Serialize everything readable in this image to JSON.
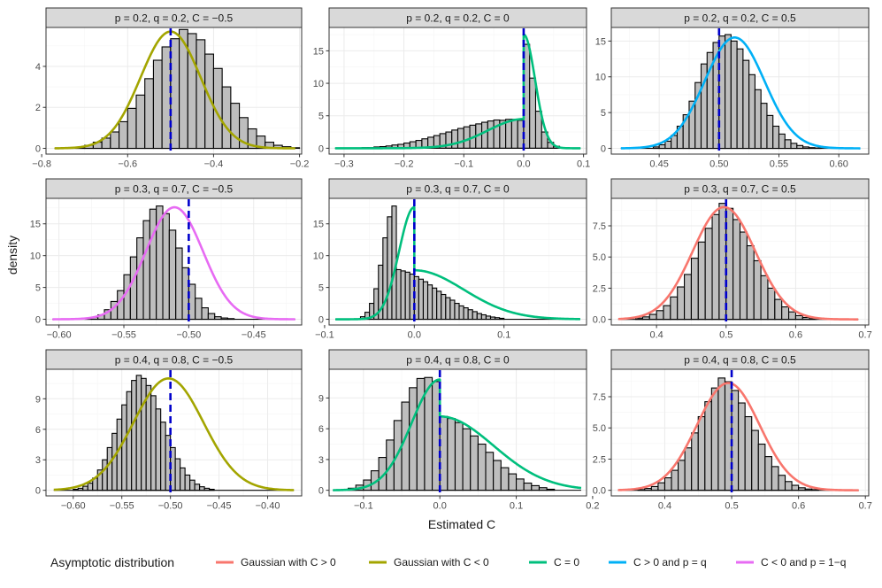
{
  "chart_data": {
    "type": "histogram+density",
    "layout": "3x3 facets, free scales",
    "xlabel": "Estimated C",
    "ylabel": "density",
    "legend": {
      "title": "Asymptotic distribution",
      "position": "bottom",
      "entries": [
        {
          "key": "gpos",
          "label": "Gaussian with C > 0",
          "color": "#F8766D"
        },
        {
          "key": "gneg",
          "label": "Gaussian with C < 0",
          "color": "#A3A500"
        },
        {
          "key": "zero",
          "label": "C = 0",
          "color": "#00BF7D"
        },
        {
          "key": "peq",
          "label": "C > 0 and p = q",
          "color": "#00B0F6"
        },
        {
          "key": "p1q",
          "label": "C < 0 and p = 1−q",
          "color": "#E76BF3"
        }
      ]
    },
    "panels": [
      {
        "strip": "p = 0.2, q = 0.2, C = −0.5",
        "curve": "gneg",
        "vline": -0.5,
        "xlim": [
          -0.79,
          -0.195
        ],
        "ylim": [
          -0.28,
          5.9
        ],
        "xticks": [
          {
            "v": -0.8,
            "l": "−0.8"
          },
          {
            "v": -0.6,
            "l": "−0.6"
          },
          {
            "v": -0.4,
            "l": "−0.4"
          },
          {
            "v": -0.2,
            "l": "−0.2"
          }
        ],
        "yticks": [
          {
            "v": 0,
            "l": "0"
          },
          {
            "v": 2,
            "l": "2"
          },
          {
            "v": 4,
            "l": "4"
          }
        ],
        "hist": {
          "start": -0.72,
          "width": 0.02,
          "values": [
            0.05,
            0.15,
            0.3,
            0.5,
            0.8,
            1.3,
            1.95,
            2.6,
            3.4,
            4.3,
            4.95,
            5.35,
            5.8,
            5.6,
            5.3,
            4.6,
            3.9,
            3.0,
            2.2,
            1.5,
            0.95,
            0.6,
            0.3,
            0.15,
            0.08,
            0.03
          ]
        },
        "dens": {
          "from": -0.77,
          "to": -0.21,
          "mu": -0.5,
          "sd": 0.07,
          "amp": 5.7
        }
      },
      {
        "strip": "p = 0.2, q = 0.2, C = 0",
        "curve": "zero",
        "vline": 0,
        "xlim": [
          -0.325,
          0.105
        ],
        "ylim": [
          -0.9,
          18.6
        ],
        "xticks": [
          {
            "v": -0.3,
            "l": "−0.3"
          },
          {
            "v": -0.2,
            "l": "−0.2"
          },
          {
            "v": -0.1,
            "l": "−0.1"
          },
          {
            "v": 0,
            "l": "0.0"
          },
          {
            "v": 0.1,
            "l": "0.1"
          }
        ],
        "yticks": [
          {
            "v": 0,
            "l": "0"
          },
          {
            "v": 5,
            "l": "5"
          },
          {
            "v": 10,
            "l": "10"
          },
          {
            "v": 15,
            "l": "15"
          }
        ],
        "hist": {
          "start": -0.29,
          "width": 0.01,
          "values": [
            0.05,
            0.05,
            0.1,
            0.1,
            0.2,
            0.25,
            0.35,
            0.5,
            0.6,
            0.8,
            1.0,
            1.2,
            1.45,
            1.7,
            1.95,
            2.25,
            2.5,
            2.8,
            3.05,
            3.3,
            3.55,
            3.75,
            4.0,
            4.2,
            4.35,
            4.3,
            4.45,
            4.45,
            4.3,
            16.0,
            10.8,
            5.7,
            2.5,
            0.9,
            0.3,
            0.1
          ]
        },
        "dens": {
          "split": 0,
          "from": -0.315,
          "to": 0.095,
          "leftSd": 0.06,
          "leftAmp": 4.5,
          "rightSd": 0.019,
          "rightAmp": 17.5
        }
      },
      {
        "strip": "p = 0.2, q = 0.2, C = 0.5",
        "curve": "peq",
        "vline": 0.5,
        "xlim": [
          0.41,
          0.625
        ],
        "ylim": [
          -0.8,
          16.9
        ],
        "xticks": [
          {
            "v": 0.45,
            "l": "0.45"
          },
          {
            "v": 0.5,
            "l": "0.50"
          },
          {
            "v": 0.55,
            "l": "0.55"
          },
          {
            "v": 0.6,
            "l": "0.60"
          }
        ],
        "yticks": [
          {
            "v": 0,
            "l": "0"
          },
          {
            "v": 5,
            "l": "5"
          },
          {
            "v": 10,
            "l": "10"
          },
          {
            "v": 15,
            "l": "15"
          }
        ],
        "hist": {
          "start": 0.445,
          "width": 0.005,
          "values": [
            0.2,
            0.5,
            1.0,
            1.8,
            3.1,
            4.7,
            6.6,
            9.2,
            11.8,
            13.4,
            14.8,
            15.7,
            15.9,
            15.0,
            13.9,
            12.3,
            10.3,
            8.2,
            6.3,
            4.6,
            3.1,
            2.0,
            1.2,
            0.7,
            0.4,
            0.2,
            0.1,
            0.05
          ]
        },
        "dens": {
          "from": 0.418,
          "to": 0.618,
          "mu": 0.513,
          "sd": 0.025,
          "amp": 15.5
        }
      },
      {
        "strip": "p = 0.3, q = 0.7, C = −0.5",
        "curve": "p1q",
        "vline": -0.5,
        "xlim": [
          -0.61,
          -0.413
        ],
        "ylim": [
          -0.9,
          19.0
        ],
        "xticks": [
          {
            "v": -0.6,
            "l": "−0.60"
          },
          {
            "v": -0.55,
            "l": "−0.55"
          },
          {
            "v": -0.5,
            "l": "−0.50"
          },
          {
            "v": -0.45,
            "l": "−0.45"
          }
        ],
        "yticks": [
          {
            "v": 0,
            "l": "0"
          },
          {
            "v": 5,
            "l": "5"
          },
          {
            "v": 10,
            "l": "10"
          },
          {
            "v": 15,
            "l": "15"
          }
        ],
        "hist": {
          "start": -0.58,
          "width": 0.005,
          "values": [
            0.1,
            0.3,
            0.7,
            1.5,
            2.8,
            4.5,
            7.0,
            9.8,
            12.8,
            15.5,
            17.3,
            17.8,
            16.6,
            14.0,
            11.2,
            8.1,
            5.5,
            3.3,
            1.8,
            0.9,
            0.4,
            0.2,
            0.1
          ]
        },
        "dens": {
          "from": -0.605,
          "to": -0.418,
          "mu": -0.511,
          "sd": 0.022,
          "amp": 17.6
        }
      },
      {
        "strip": "p = 0.3, q = 0.7, C = 0",
        "curve": "zero",
        "vline": 0,
        "xlim": [
          -0.095,
          0.192
        ],
        "ylim": [
          -0.9,
          19.0
        ],
        "xticks": [
          {
            "v": -0.1,
            "l": "−0.1"
          },
          {
            "v": 0,
            "l": "0.0"
          },
          {
            "v": 0.1,
            "l": "0.1"
          }
        ],
        "yticks": [
          {
            "v": 0,
            "l": "0"
          },
          {
            "v": 5,
            "l": "5"
          },
          {
            "v": 10,
            "l": "10"
          },
          {
            "v": 15,
            "l": "15"
          }
        ],
        "hist": {
          "start": -0.06,
          "width": 0.005,
          "values": [
            0.4,
            1.1,
            2.5,
            4.8,
            8.5,
            12.8,
            16.1,
            17.8,
            7.8,
            7.6,
            7.4,
            7.1,
            6.7,
            6.3,
            5.9,
            5.4,
            4.9,
            4.4,
            3.9,
            3.4,
            3.0,
            2.5,
            2.1,
            1.8,
            1.5,
            1.2,
            0.9,
            0.7,
            0.5,
            0.35,
            0.25,
            0.15
          ]
        },
        "dens": {
          "split": 0,
          "from": -0.088,
          "to": 0.185,
          "leftSd": 0.017,
          "leftAmp": 17.6,
          "rightSd": 0.055,
          "rightAmp": 7.7
        }
      },
      {
        "strip": "p = 0.3, q = 0.7, C = 0.5",
        "curve": "gpos",
        "vline": 0.5,
        "xlim": [
          0.335,
          0.705
        ],
        "ylim": [
          -0.45,
          9.7
        ],
        "xticks": [
          {
            "v": 0.4,
            "l": "0.4"
          },
          {
            "v": 0.5,
            "l": "0.5"
          },
          {
            "v": 0.6,
            "l": "0.6"
          },
          {
            "v": 0.7,
            "l": "0.7"
          }
        ],
        "yticks": [
          {
            "v": 0,
            "l": "0.0"
          },
          {
            "v": 2.5,
            "l": "2.5"
          },
          {
            "v": 5,
            "l": "5.0"
          },
          {
            "v": 7.5,
            "l": "7.5"
          }
        ],
        "hist": {
          "start": 0.37,
          "width": 0.01,
          "values": [
            0.1,
            0.2,
            0.4,
            0.7,
            1.1,
            1.8,
            2.6,
            3.6,
            4.9,
            6.2,
            7.3,
            8.4,
            9.3,
            8.9,
            8.0,
            7.0,
            5.9,
            4.7,
            3.5,
            2.5,
            1.6,
            1.0,
            0.6,
            0.3,
            0.15,
            0.05
          ]
        },
        "dens": {
          "from": 0.345,
          "to": 0.69,
          "mu": 0.497,
          "sd": 0.045,
          "amp": 9.0
        }
      },
      {
        "strip": "p = 0.4, q = 0.8, C = −0.5",
        "curve": "gneg",
        "vline": -0.5,
        "xlim": [
          -0.628,
          -0.365
        ],
        "ylim": [
          -0.55,
          11.9
        ],
        "xticks": [
          {
            "v": -0.6,
            "l": "−0.60"
          },
          {
            "v": -0.55,
            "l": "−0.55"
          },
          {
            "v": -0.5,
            "l": "−0.50"
          },
          {
            "v": -0.45,
            "l": "−0.45"
          },
          {
            "v": -0.4,
            "l": "−0.40"
          }
        ],
        "yticks": [
          {
            "v": 0,
            "l": "0"
          },
          {
            "v": 3,
            "l": "3"
          },
          {
            "v": 6,
            "l": "6"
          },
          {
            "v": 9,
            "l": "9"
          }
        ],
        "hist": {
          "start": -0.6,
          "width": 0.005,
          "values": [
            0.1,
            0.2,
            0.4,
            0.7,
            1.2,
            2.0,
            3.0,
            4.2,
            5.6,
            7.0,
            8.4,
            9.7,
            10.8,
            11.3,
            11.0,
            10.3,
            9.3,
            8.0,
            6.7,
            5.4,
            4.2,
            3.1,
            2.2,
            1.5,
            1.0,
            0.6,
            0.35,
            0.2,
            0.1
          ]
        },
        "dens": {
          "from": -0.62,
          "to": -0.373,
          "mu": -0.502,
          "sd": 0.036,
          "amp": 11.0
        }
      },
      {
        "strip": "p = 0.4, q = 0.8, C = 0",
        "curve": "zero",
        "vline": 0,
        "xlim": [
          -0.145,
          0.192
        ],
        "ylim": [
          -0.55,
          11.8
        ],
        "xticks": [
          {
            "v": -0.1,
            "l": "−0.1"
          },
          {
            "v": 0,
            "l": "0.0"
          },
          {
            "v": 0.1,
            "l": "0.1"
          },
          {
            "v": 0.2,
            "l": "0.2"
          }
        ],
        "yticks": [
          {
            "v": 0,
            "l": "0"
          },
          {
            "v": 3,
            "l": "3"
          },
          {
            "v": 6,
            "l": "6"
          },
          {
            "v": 9,
            "l": "9"
          }
        ],
        "hist": {
          "start": -0.12,
          "width": 0.01,
          "values": [
            0.2,
            0.5,
            1.0,
            1.9,
            3.2,
            4.9,
            6.8,
            8.6,
            10.0,
            10.9,
            11.0,
            10.6,
            7.2,
            7.0,
            6.6,
            6.0,
            5.3,
            4.5,
            3.7,
            2.9,
            2.2,
            1.6,
            1.1,
            0.7,
            0.45,
            0.25,
            0.1
          ]
        },
        "dens": {
          "split": 0,
          "from": -0.14,
          "to": 0.185,
          "leftSd": 0.037,
          "leftAmp": 10.8,
          "rightSd": 0.07,
          "rightAmp": 7.2
        }
      },
      {
        "strip": "p = 0.4, q = 0.8, C = 0.5",
        "curve": "gpos",
        "vline": 0.5,
        "xlim": [
          0.32,
          0.705
        ],
        "ylim": [
          -0.45,
          9.7
        ],
        "xticks": [
          {
            "v": 0.4,
            "l": "0.4"
          },
          {
            "v": 0.5,
            "l": "0.5"
          },
          {
            "v": 0.6,
            "l": "0.6"
          },
          {
            "v": 0.7,
            "l": "0.7"
          }
        ],
        "yticks": [
          {
            "v": 0,
            "l": "0.0"
          },
          {
            "v": 2.5,
            "l": "2.5"
          },
          {
            "v": 5,
            "l": "5.0"
          },
          {
            "v": 7.5,
            "l": "7.5"
          }
        ],
        "hist": {
          "start": 0.36,
          "width": 0.01,
          "values": [
            0.05,
            0.15,
            0.3,
            0.6,
            1.0,
            1.6,
            2.4,
            3.4,
            4.6,
            5.9,
            7.1,
            8.2,
            9.0,
            8.7,
            8.0,
            7.0,
            5.9,
            4.8,
            3.7,
            2.7,
            1.9,
            1.2,
            0.7,
            0.4,
            0.2,
            0.1,
            0.05
          ]
        },
        "dens": {
          "from": 0.33,
          "to": 0.69,
          "mu": 0.495,
          "sd": 0.047,
          "amp": 8.6
        }
      }
    ]
  }
}
